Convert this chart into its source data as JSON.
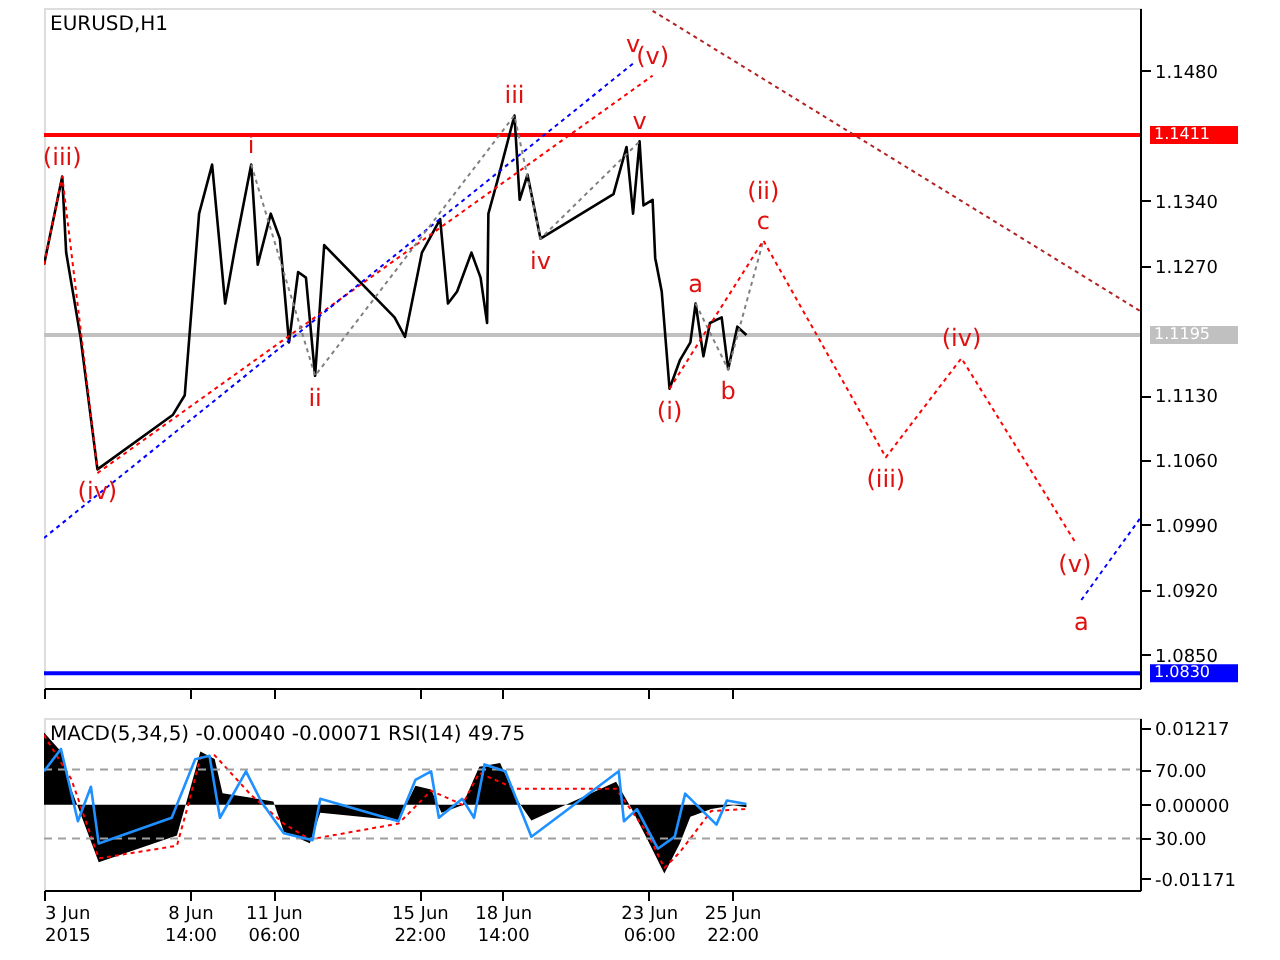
{
  "chart_data": [
    {
      "type": "line",
      "title": "EURUSD,H1",
      "xlim": [
        "2015-06-03T22:00",
        "2015-07-08T23:00"
      ],
      "ylim": [
        1.0814,
        1.1548
      ],
      "yticks": [
        {
          "value": 1.148,
          "label": "1.1480"
        },
        {
          "value": 1.134,
          "label": "1.1340"
        },
        {
          "value": 1.127,
          "label": "1.1270"
        },
        {
          "value": 1.113,
          "label": "1.1130"
        },
        {
          "value": 1.106,
          "label": "1.1060"
        },
        {
          "value": 1.099,
          "label": "1.0990"
        },
        {
          "value": 1.092,
          "label": "1.0920"
        },
        {
          "value": 1.085,
          "label": "1.0850"
        }
      ],
      "xticks": [
        {
          "value": "2015-06-03T22:00",
          "label": null
        },
        {
          "value": "2015-06-08T14:00",
          "label": null
        },
        {
          "value": "2015-06-11T06:00",
          "label": null
        },
        {
          "value": "2015-06-15T22:00",
          "label": null
        },
        {
          "value": "2015-06-18T14:00",
          "label": null
        },
        {
          "value": "2015-06-23T06:00",
          "label": null
        },
        {
          "value": "2015-06-25T22:00",
          "label": null
        }
      ],
      "tick_labels": "y",
      "series": [
        {
          "color": "#000000",
          "line_style": "solid",
          "x": [
            "2015-06-03T22:00",
            "2015-06-04T12:00",
            "2015-06-04T15:00",
            "2015-06-05T02:00",
            "2015-06-05T15:00",
            "2015-06-08T01:00",
            "2015-06-08T10:00",
            "2015-06-08T21:00",
            "2015-06-09T07:00",
            "2015-06-09T17:00",
            "2015-06-10T01:00",
            "2015-06-10T13:00",
            "2015-06-10T18:00",
            "2015-06-11T04:00",
            "2015-06-11T11:00",
            "2015-06-11T18:00",
            "2015-06-12T01:00",
            "2015-06-12T07:00",
            "2015-06-12T14:00",
            "2015-06-12T21:00",
            "2015-06-15T03:00",
            "2015-06-15T11:00",
            "2015-06-16T00:00",
            "2015-06-16T14:00",
            "2015-06-16T20:00",
            "2015-06-17T03:00",
            "2015-06-17T14:00",
            "2015-06-17T21:00",
            "2015-06-18T02:00",
            "2015-06-18T03:00",
            "2015-06-18T10:00",
            "2015-06-18T23:00",
            "2015-06-19T03:00",
            "2015-06-19T09:00",
            "2015-06-19T19:00",
            "2015-06-22T03:00",
            "2015-06-22T13:00",
            "2015-06-22T18:00",
            "2015-06-22T23:00",
            "2015-06-23T02:00",
            "2015-06-23T09:00",
            "2015-06-23T11:00",
            "2015-06-23T12:00",
            "2015-06-23T16:00",
            "2015-06-23T22:00",
            "2015-06-24T06:00",
            "2015-06-24T14:00",
            "2015-06-24T18:00",
            "2015-06-25T00:00",
            "2015-06-25T05:00",
            "2015-06-25T14:00",
            "2015-06-25T19:00",
            "2015-06-26T02:00",
            "2015-06-26T09:00"
          ],
          "values": [
            1.1271,
            1.1366,
            1.1284,
            1.1193,
            1.105,
            1.1109,
            1.113,
            1.1326,
            1.1379,
            1.1229,
            1.1292,
            1.1379,
            1.1271,
            1.1326,
            1.1299,
            1.1187,
            1.1263,
            1.1257,
            1.1151,
            1.1292,
            1.1214,
            1.1193,
            1.1284,
            1.132,
            1.1229,
            1.1242,
            1.1284,
            1.1257,
            1.1208,
            1.1326,
            1.1362,
            1.1432,
            1.1341,
            1.1368,
            1.1299,
            1.1347,
            1.1398,
            1.1326,
            1.1404,
            1.1335,
            1.1341,
            1.1278,
            1.1271,
            1.1242,
            1.1137,
            1.1168,
            1.1187,
            1.1229,
            1.1172,
            1.1208,
            1.1214,
            1.1158,
            1.1204,
            1.1195
          ]
        },
        {
          "color": "#ff0000",
          "line_style": "dotted",
          "x": [
            "2015-06-03T22:00",
            "2015-06-04T12:00",
            "2015-06-05T15:00"
          ],
          "values": [
            1.1271,
            1.1366,
            1.105
          ]
        },
        {
          "color": "#ff0000",
          "line_style": "dotted",
          "x": [
            "2015-06-05T15:00",
            "2015-06-23T09:00"
          ],
          "values": [
            1.1046,
            1.1475
          ]
        },
        {
          "color": "#0000ff",
          "line_style": "dotted",
          "x": [
            "2015-06-03T22:00",
            "2015-06-22T18:00"
          ],
          "values": [
            1.0976,
            1.1488
          ]
        },
        {
          "color": "#808080",
          "line_style": "dotted",
          "x": [
            "2015-06-10T13:00",
            "2015-06-12T14:00",
            "2015-06-18T23:00",
            "2015-06-19T19:00",
            "2015-06-22T23:00"
          ],
          "values": [
            1.1379,
            1.1151,
            1.1432,
            1.1299,
            1.1404
          ]
        },
        {
          "color": "#808080",
          "line_style": "dotted",
          "x": [
            "2015-06-24T18:00",
            "2015-06-25T19:00",
            "2015-06-26T22:00"
          ],
          "values": [
            1.1229,
            1.1158,
            1.1297
          ]
        },
        {
          "color": "#ff0000",
          "line_style": "dotted",
          "x": [
            "2015-06-23T22:00",
            "2015-06-26T22:00",
            "2015-06-30T20:00",
            "2015-07-03T06:00",
            "2015-07-06T21:00"
          ],
          "values": [
            1.1137,
            1.1297,
            1.1063,
            1.117,
            1.0972
          ]
        },
        {
          "color": "#0000ff",
          "line_style": "dotted",
          "x": [
            "2015-07-07T02:00",
            "2015-07-08T23:00"
          ],
          "values": [
            1.0909,
            1.0997
          ]
        },
        {
          "color": "#b22222",
          "line_style": "dotted",
          "x": [
            "2015-06-23T09:00",
            "2015-07-08T23:00"
          ],
          "values": [
            1.1545,
            1.1221
          ]
        }
      ],
      "ref_lines": [
        {
          "axis": "y",
          "value": 1.1411,
          "label": "1.1411",
          "color": "#ff0000",
          "line_style": "solid"
        },
        {
          "axis": "y",
          "value": 1.083,
          "label": "1.0830",
          "color": "#0000ff",
          "line_style": "solid"
        },
        {
          "axis": "y",
          "value": 1.1195,
          "label": "1.1195",
          "color": "#c0c0c0",
          "line_style": "solid"
        }
      ],
      "annotations": [
        {
          "text": "(iii)",
          "x": "2015-06-04T12:00",
          "y": 1.1366
        },
        {
          "text": "(iv)",
          "x": "2015-06-05T15:00",
          "y": 1.105
        },
        {
          "text": "i",
          "x": "2015-06-10T13:00",
          "y": 1.1379
        },
        {
          "text": "ii",
          "x": "2015-06-12T14:00",
          "y": 1.1151
        },
        {
          "text": "iii",
          "x": "2015-06-18T23:00",
          "y": 1.1432
        },
        {
          "text": "iv",
          "x": "2015-06-19T19:00",
          "y": 1.1299
        },
        {
          "text": "v",
          "x": "2015-06-22T23:00",
          "y": 1.1404
        },
        {
          "text": "(v)",
          "x": "2015-06-23T09:00",
          "y": 1.1475
        },
        {
          "text": "v",
          "x": "2015-06-22T18:00",
          "y": 1.1488
        },
        {
          "text": "(i)",
          "x": "2015-06-23T22:00",
          "y": 1.1137
        },
        {
          "text": "a",
          "x": "2015-06-24T18:00",
          "y": 1.1229
        },
        {
          "text": "b",
          "x": "2015-06-25T19:00",
          "y": 1.1158
        },
        {
          "text": "c",
          "x": "2015-06-26T22:00",
          "y": 1.1297
        },
        {
          "text": "(ii)",
          "x": "2015-06-26T22:00",
          "y": 1.1297
        },
        {
          "text": "(iii)",
          "x": "2015-06-30T20:00",
          "y": 1.1063
        },
        {
          "text": "(iv)",
          "x": "2015-07-03T06:00",
          "y": 1.117
        },
        {
          "text": "(v)",
          "x": "2015-07-06T21:00",
          "y": 1.0972
        },
        {
          "text": "a",
          "x": "2015-07-07T02:00",
          "y": 1.0909
        }
      ]
    },
    {
      "type": "line",
      "title": "MACD(5,34,5) -0.00040 -0.00071 RSI(14) 49.75",
      "xlim": [
        "2015-06-03T22:00",
        "2015-07-08T23:00"
      ],
      "ylim": [
        -0.0135,
        0.0137
      ],
      "yticks": [
        {
          "value": 0.01217,
          "label": "0.01217"
        },
        {
          "value": 0,
          "label": "0.00000"
        },
        {
          "value": -0.01171,
          "label": "-0.01171"
        }
      ],
      "y2lim": [
        0,
        100
      ],
      "y2ticks": [
        {
          "value": 70,
          "label": "70.00"
        },
        {
          "value": 30,
          "label": "30.00"
        }
      ],
      "xticks": [
        {
          "value": "2015-06-03T22:00",
          "label": "3 Jun 2015"
        },
        {
          "value": "2015-06-08T14:00",
          "label": "8 Jun 14:00"
        },
        {
          "value": "2015-06-11T06:00",
          "label": "11 Jun 06:00"
        },
        {
          "value": "2015-06-15T22:00",
          "label": "15 Jun 22:00"
        },
        {
          "value": "2015-06-18T14:00",
          "label": "18 Jun 14:00"
        },
        {
          "value": "2015-06-23T06:00",
          "label": "23 Jun 06:00"
        },
        {
          "value": "2015-06-25T22:00",
          "label": "25 Jun 22:00"
        }
      ],
      "series": [
        {
          "type": "area",
          "color": "#000000",
          "line_style": "solid",
          "x": [
            "2015-06-03T22:00",
            "2015-06-04T11:00",
            "2015-06-04T19:00",
            "2015-06-05T04:00",
            "2015-06-05T16:00",
            "2015-06-08T04:00",
            "2015-06-08T14:00",
            "2015-06-08T22:00",
            "2015-06-09T09:00",
            "2015-06-09T15:00",
            "2015-06-10T13:00",
            "2015-06-11T06:00",
            "2015-06-11T14:00",
            "2015-06-12T10:00",
            "2015-06-12T18:00",
            "2015-06-15T06:00",
            "2015-06-15T19:00",
            "2015-06-16T07:00",
            "2015-06-16T15:00",
            "2015-06-17T07:00",
            "2015-06-17T20:00",
            "2015-06-18T12:00",
            "2015-06-19T00:00",
            "2015-06-19T12:00",
            "2015-06-22T05:00",
            "2015-06-22T17:00",
            "2015-06-23T05:00",
            "2015-06-23T18:00",
            "2015-06-24T06:00",
            "2015-06-24T14:00",
            "2015-06-25T06:00",
            "2015-06-25T23:00",
            "2015-06-26T09:00"
          ],
          "values": [
            0.0114,
            0.0084,
            0.0024,
            -0.0025,
            -0.0091,
            -0.0049,
            0.0024,
            0.0084,
            0.0072,
            0.0018,
            0.0011,
            0.0005,
            -0.0043,
            -0.0061,
            -0.0013,
            -0.0025,
            0.003,
            0.0024,
            -0.0013,
            -0.0001,
            0.006,
            0.0066,
            0.0011,
            -0.0025,
            0.0036,
            -0.0007,
            -0.0055,
            -0.0109,
            -0.0061,
            -0.0019,
            -0.0007,
            -0.0001,
            -0.0004
          ]
        },
        {
          "type": "line",
          "color": "#ff0000",
          "line_style": "dotted",
          "x": [
            "2015-06-03T22:00",
            "2015-06-04T19:00",
            "2015-06-05T16:00",
            "2015-06-08T04:00",
            "2015-06-08T14:00",
            "2015-06-08T22:00",
            "2015-06-09T09:00",
            "2015-06-10T13:00",
            "2015-06-11T14:00",
            "2015-06-12T10:00",
            "2015-06-15T06:00",
            "2015-06-16T07:00",
            "2015-06-17T07:00",
            "2015-06-17T20:00",
            "2015-06-19T00:00",
            "2015-06-22T05:00",
            "2015-06-23T05:00",
            "2015-06-23T18:00",
            "2015-06-24T06:00",
            "2015-06-25T06:00",
            "2015-06-26T09:00"
          ],
          "values": [
            0.011,
            0.004,
            -0.0085,
            -0.0065,
            0.001,
            0.0075,
            0.0078,
            0.0015,
            -0.003,
            -0.0055,
            -0.003,
            0.0022,
            0.0,
            0.005,
            0.0025,
            0.0025,
            -0.0045,
            -0.01,
            -0.0075,
            -0.001,
            -0.0007
          ]
        },
        {
          "type": "line",
          "axis": "y2",
          "color": "#1e90ff",
          "line_style": "solid",
          "x": [
            "2015-06-03T22:00",
            "2015-06-04T11:00",
            "2015-06-05T00:00",
            "2015-06-05T10:00",
            "2015-06-05T16:00",
            "2015-06-08T00:00",
            "2015-06-08T18:00",
            "2015-06-09T05:00",
            "2015-06-09T13:00",
            "2015-06-10T09:00",
            "2015-06-10T21:00",
            "2015-06-11T14:00",
            "2015-06-12T12:00",
            "2015-06-12T18:00",
            "2015-06-15T06:00",
            "2015-06-15T19:00",
            "2015-06-16T07:00",
            "2015-06-16T13:00",
            "2015-06-17T07:00",
            "2015-06-17T16:00",
            "2015-06-18T00:00",
            "2015-06-18T16:00",
            "2015-06-19T12:00",
            "2015-06-22T07:00",
            "2015-06-22T11:00",
            "2015-06-22T21:00",
            "2015-06-23T13:00",
            "2015-06-24T02:00",
            "2015-06-24T10:00",
            "2015-06-24T22:00",
            "2015-06-25T10:00",
            "2015-06-25T18:00",
            "2015-06-26T09:00"
          ],
          "values": [
            69,
            82,
            40,
            60,
            27,
            42,
            76,
            78,
            42,
            69,
            51,
            33,
            29,
            53,
            40,
            64,
            69,
            42,
            53,
            42,
            73,
            69,
            31,
            69,
            40,
            47,
            24,
            31,
            56,
            47,
            38,
            52,
            50
          ]
        }
      ],
      "ref_lines": [
        {
          "axis": "y2",
          "value": 70,
          "color": "#a0a0a0",
          "line_style": "dashed"
        },
        {
          "axis": "y2",
          "value": 30,
          "color": "#a0a0a0",
          "line_style": "dashed"
        }
      ]
    }
  ]
}
